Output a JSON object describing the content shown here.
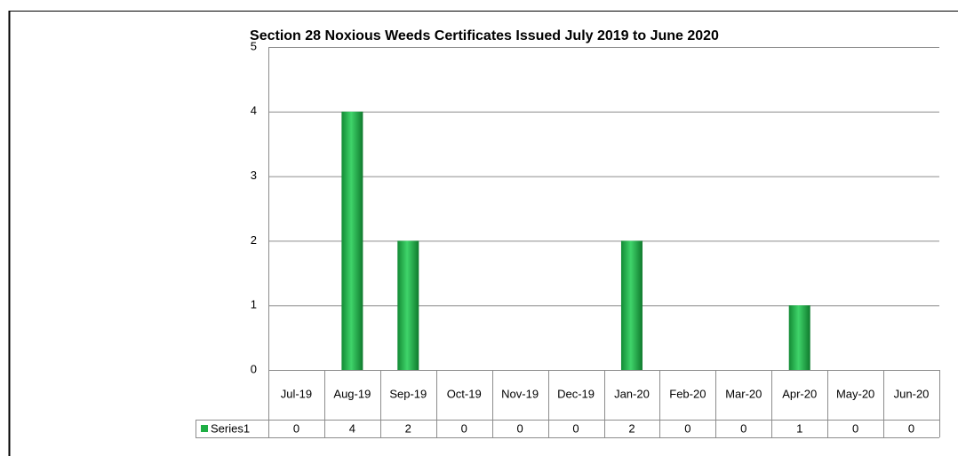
{
  "chart_data": {
    "type": "bar",
    "title": "Section 28 Noxious Weeds Certificates Issued July 2019 to June 2020",
    "categories": [
      "Jul-19",
      "Aug-19",
      "Sep-19",
      "Oct-19",
      "Nov-19",
      "Dec-19",
      "Jan-20",
      "Feb-20",
      "Mar-20",
      "Apr-20",
      "May-20",
      "Jun-20"
    ],
    "series": [
      {
        "name": "Series1",
        "color": "#1fae45",
        "values": [
          0,
          4,
          2,
          0,
          0,
          0,
          2,
          0,
          0,
          1,
          0,
          0
        ]
      }
    ],
    "ylim": [
      0,
      5
    ],
    "yticks": [
      0,
      1,
      2,
      3,
      4,
      5
    ],
    "grid": true,
    "data_table": true
  }
}
